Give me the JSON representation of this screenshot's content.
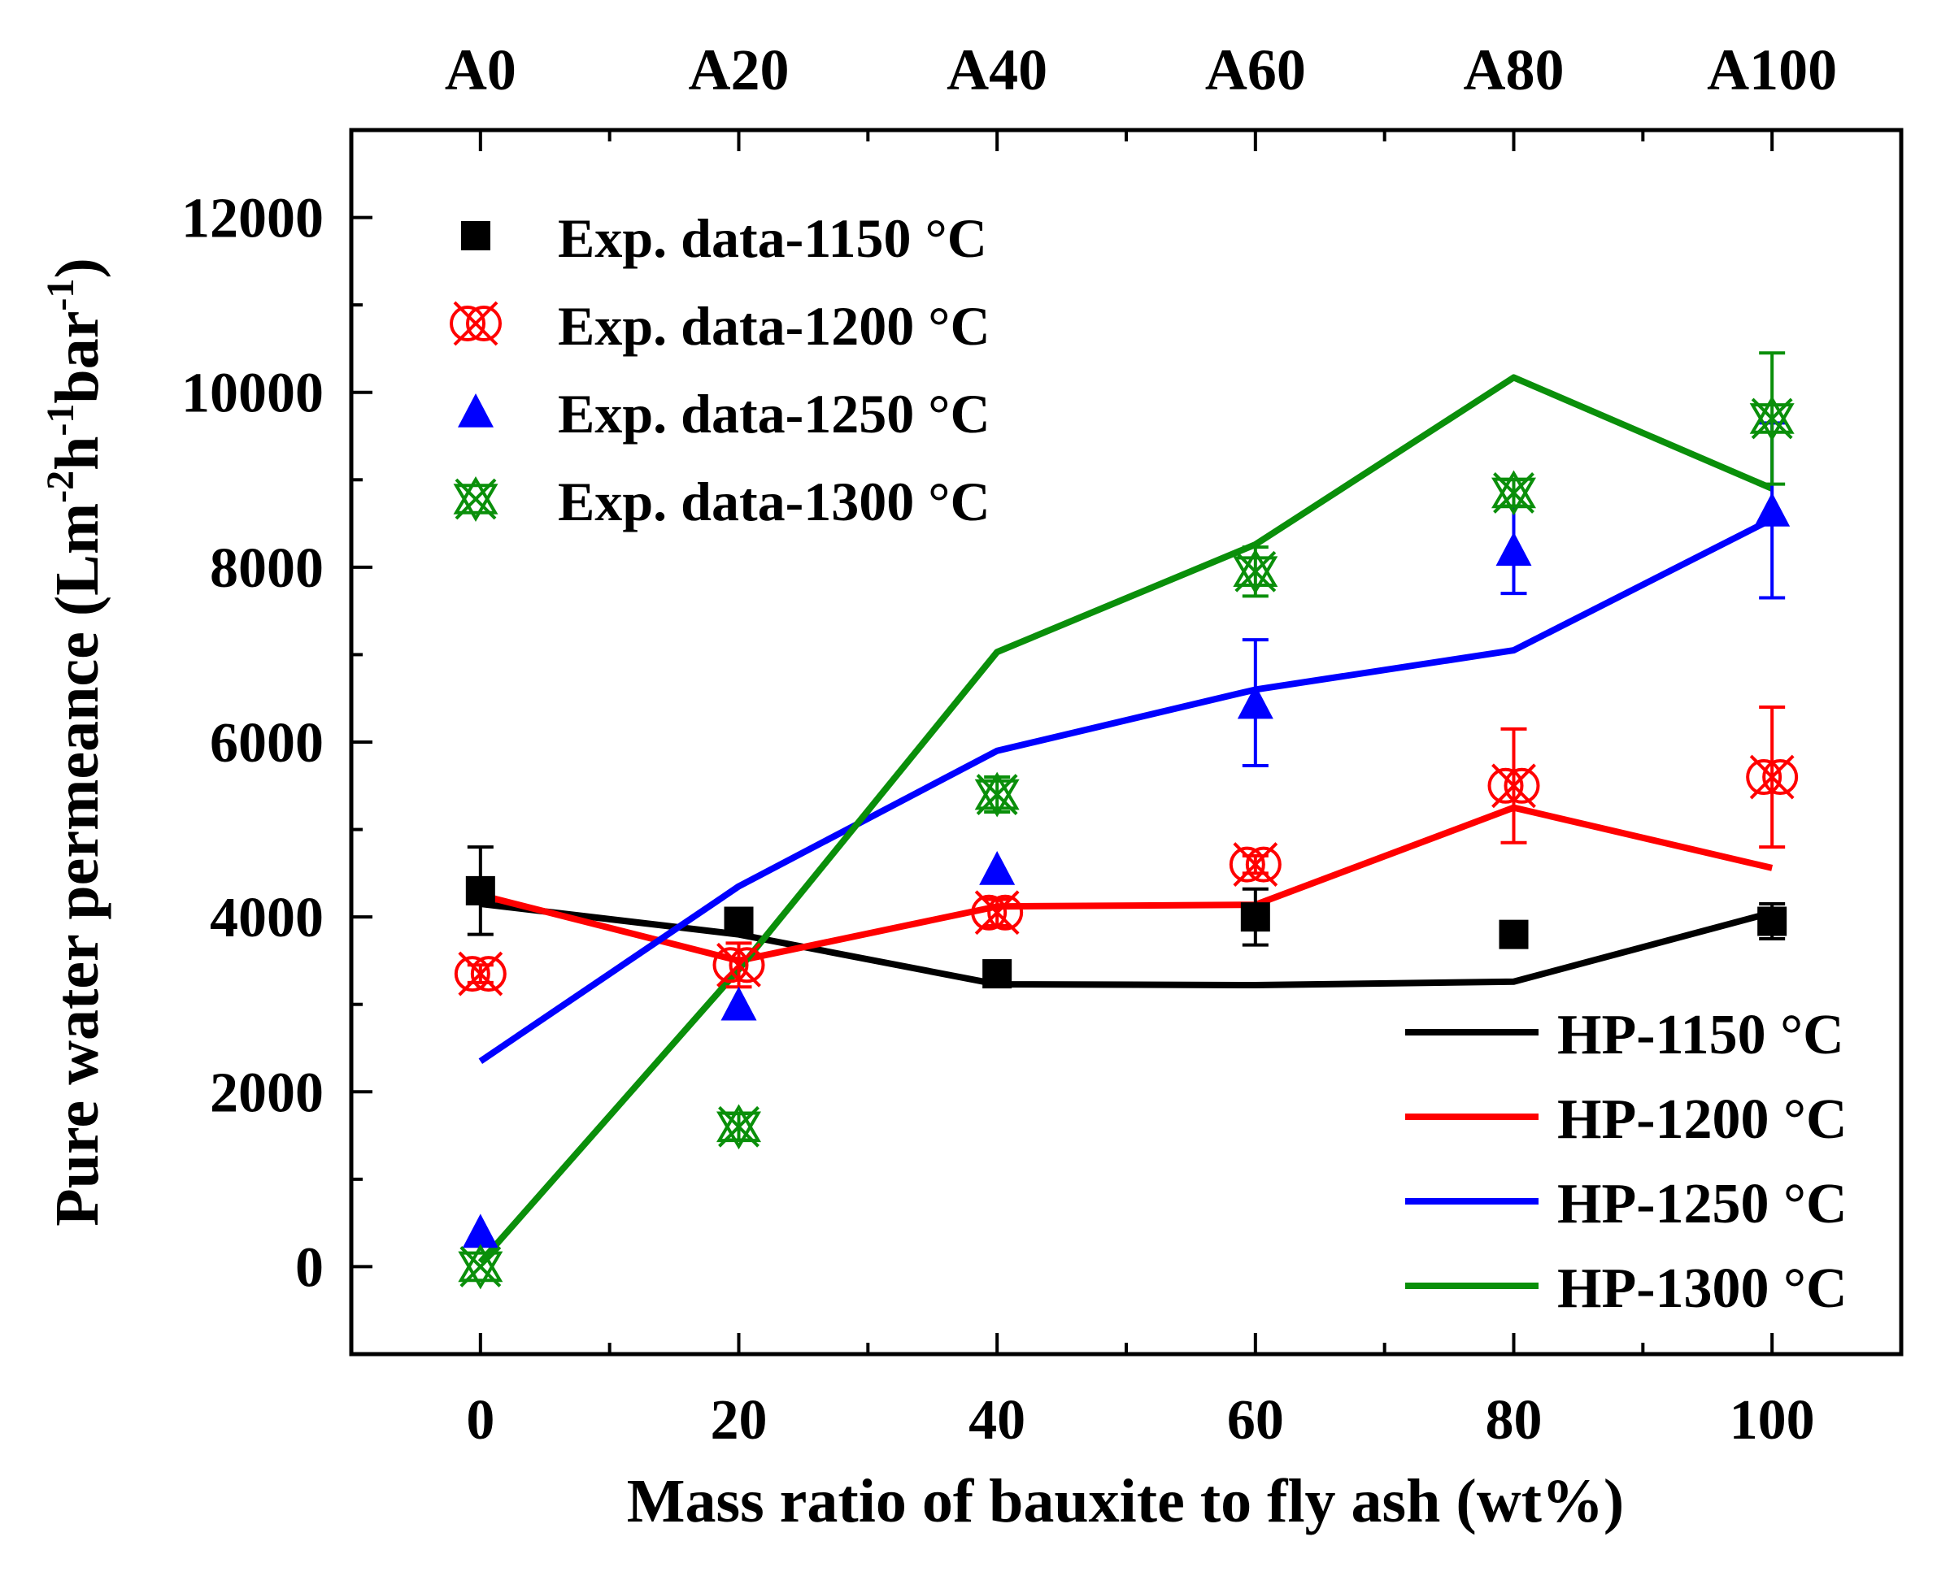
{
  "chart_data": {
    "type": "line",
    "x_categories": [
      0,
      20,
      40,
      60,
      80,
      100
    ],
    "top_categories": [
      "A0",
      "A20",
      "A40",
      "A60",
      "A80",
      "A100"
    ],
    "xlabel": "Mass ratio of bauxite to fly ash (wt%)",
    "ylabel": {
      "main": "Pure water permeance (Lm",
      "sup1": "-2",
      "mid1": "h",
      "sup2": "-1",
      "mid2": "bar",
      "sup3": "-1",
      "end": ")"
    },
    "xlim": [
      -10,
      110
    ],
    "ylim": [
      -1000,
      13000
    ],
    "y_ticks": [
      0,
      2000,
      4000,
      6000,
      8000,
      10000,
      12000
    ],
    "x_ticks": [
      0,
      20,
      40,
      60,
      80,
      100
    ],
    "y_minor_ticks": [
      -1000,
      1000,
      3000,
      5000,
      7000,
      9000,
      11000
    ],
    "x_minor_ticks": [
      10,
      30,
      50,
      70,
      90
    ],
    "experimental": [
      {
        "name": "Exp. data-1150 °C",
        "color": "#000000",
        "marker": "square",
        "x": [
          0,
          20,
          40,
          60,
          80,
          100
        ],
        "y": [
          4300,
          3950,
          3350,
          4000,
          3800,
          3950
        ],
        "err": [
          500,
          100,
          100,
          320,
          80,
          200
        ]
      },
      {
        "name": "Exp. data-1200 °C",
        "color": "#ff0000",
        "marker": "crossed-circle",
        "x": [
          0,
          20,
          40,
          60,
          80,
          100
        ],
        "y": [
          3350,
          3450,
          4050,
          4600,
          5500,
          5600
        ],
        "err": [
          100,
          250,
          150,
          100,
          650,
          800
        ]
      },
      {
        "name": "Exp. data-1250 °C",
        "color": "#0000ff",
        "marker": "triangle",
        "x": [
          0,
          20,
          40,
          60,
          80
        ],
        "y": [
          400,
          3000,
          4550,
          6450,
          8200
        ],
        "err": [
          0,
          0,
          0,
          720,
          500
        ]
      },
      {
        "name": "Exp. data-1250 °C (A100)",
        "color": "#0000ff",
        "marker": "triangle",
        "x": [
          100
        ],
        "y": [
          8650
        ],
        "err": [
          1000
        ]
      },
      {
        "name": "Exp. data-1300 °C",
        "color": "#0a8f0a",
        "marker": "crossed-triangle",
        "x": [
          0,
          20,
          40,
          60,
          80,
          100
        ],
        "y": [
          0,
          1600,
          5400,
          7950,
          8850,
          9700
        ],
        "err": [
          0,
          150,
          200,
          280,
          150,
          750
        ]
      }
    ],
    "legend_exp": [
      "Exp. data-1150 °C",
      "Exp. data-1200 °C",
      "Exp. data-1250 °C",
      "Exp. data-1300 °C"
    ],
    "hp_lines": [
      {
        "name": "HP-1150 °C",
        "color": "#000000",
        "x": [
          0,
          20,
          40,
          60,
          80,
          100
        ],
        "y": [
          4150,
          3800,
          3230,
          3220,
          3260,
          4050
        ]
      },
      {
        "name": "HP-1200 °C",
        "color": "#ff0000",
        "x": [
          0,
          20,
          40,
          60,
          80,
          100
        ],
        "y": [
          4250,
          3500,
          4120,
          4140,
          5250,
          4560
        ]
      },
      {
        "name": "HP-1250 °C",
        "color": "#0000ff",
        "x": [
          0,
          20,
          40,
          60,
          80,
          100
        ],
        "y": [
          2350,
          4350,
          5900,
          6600,
          7050,
          8550
        ]
      },
      {
        "name": "HP-1300 °C",
        "color": "#0a8f0a",
        "x": [
          0,
          20,
          40,
          60,
          80,
          100
        ],
        "y": [
          50,
          3400,
          7030,
          8260,
          10170,
          8900
        ]
      }
    ]
  }
}
